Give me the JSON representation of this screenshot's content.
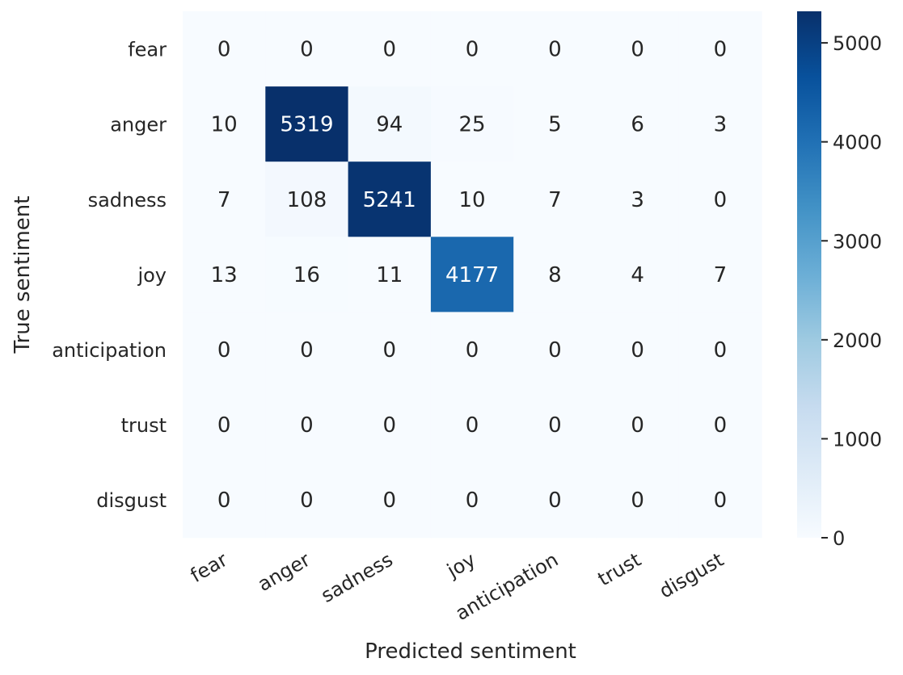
{
  "chart_data": {
    "type": "heatmap",
    "title": "",
    "xlabel": "Predicted sentiment",
    "ylabel": "True sentiment",
    "x_categories": [
      "fear",
      "anger",
      "sadness",
      "joy",
      "anticipation",
      "trust",
      "disgust"
    ],
    "y_categories": [
      "fear",
      "anger",
      "sadness",
      "joy",
      "anticipation",
      "trust",
      "disgust"
    ],
    "values": [
      [
        0,
        0,
        0,
        0,
        0,
        0,
        0
      ],
      [
        10,
        5319,
        94,
        25,
        5,
        6,
        3
      ],
      [
        7,
        108,
        5241,
        10,
        7,
        3,
        0
      ],
      [
        13,
        16,
        11,
        4177,
        8,
        4,
        7
      ],
      [
        0,
        0,
        0,
        0,
        0,
        0,
        0
      ],
      [
        0,
        0,
        0,
        0,
        0,
        0,
        0
      ],
      [
        0,
        0,
        0,
        0,
        0,
        0,
        0
      ]
    ],
    "colormap": "Blues",
    "colorbar": {
      "range": [
        0,
        5319
      ],
      "ticks": [
        "0",
        "1000",
        "2000",
        "3000",
        "4000",
        "5000"
      ]
    },
    "x_tick_rotation_deg": 30,
    "grid": false
  }
}
